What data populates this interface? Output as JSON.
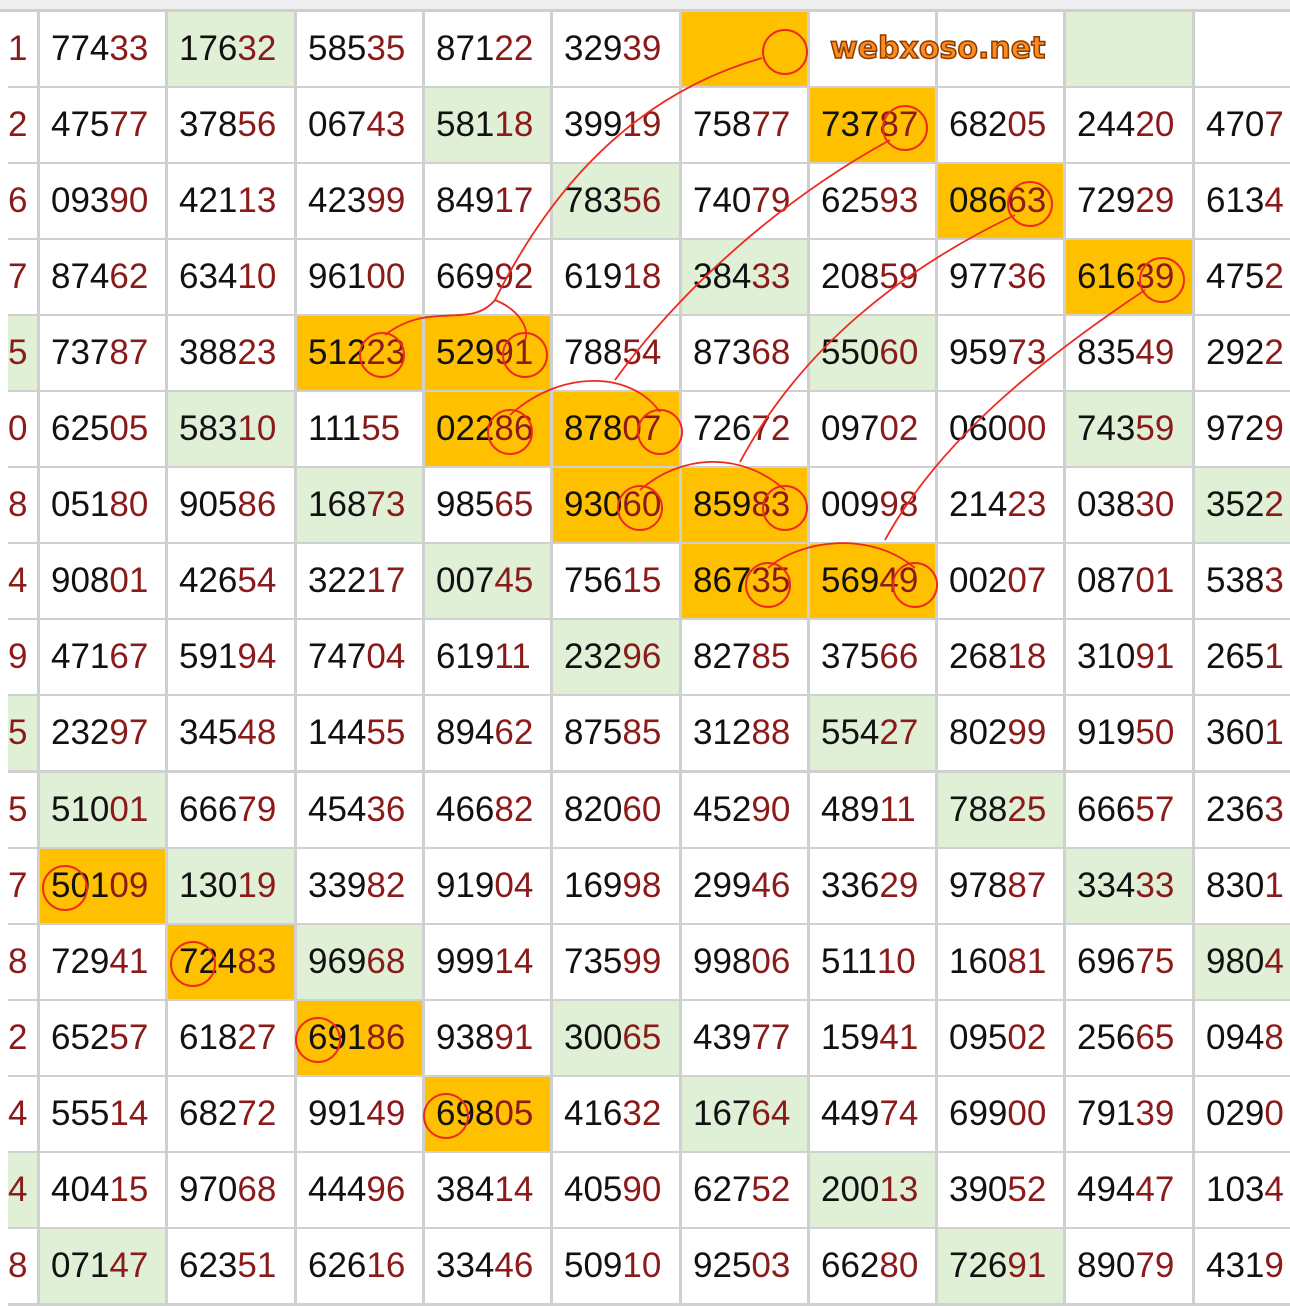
{
  "watermark": "webxoso.net",
  "colors": {
    "green": "#dff0d6",
    "orange": "#ffc000",
    "tail_red": "#8b1a1a"
  },
  "rows": [
    {
      "idx": "1",
      "idx_h": null,
      "cells": [
        {
          "v": "77433",
          "h": null
        },
        {
          "v": "17632",
          "h": "green"
        },
        {
          "v": "58535",
          "h": null
        },
        {
          "v": "87122",
          "h": null
        },
        {
          "v": "32939",
          "h": null
        },
        {
          "v": "",
          "h": "orange"
        },
        {
          "v": "",
          "h": null
        },
        {
          "v": "",
          "h": null
        },
        {
          "v": "",
          "h": "green"
        },
        {
          "v": "",
          "h": null
        }
      ]
    },
    {
      "idx": "2",
      "idx_h": null,
      "cells": [
        {
          "v": "47577",
          "h": null
        },
        {
          "v": "37856",
          "h": null
        },
        {
          "v": "06743",
          "h": null
        },
        {
          "v": "58118",
          "h": "green"
        },
        {
          "v": "39919",
          "h": null
        },
        {
          "v": "75877",
          "h": null
        },
        {
          "v": "73787",
          "h": "orange"
        },
        {
          "v": "68205",
          "h": null
        },
        {
          "v": "24420",
          "h": null
        },
        {
          "v": "4707",
          "h": null
        }
      ]
    },
    {
      "idx": "6",
      "idx_h": null,
      "cells": [
        {
          "v": "09390",
          "h": null
        },
        {
          "v": "42113",
          "h": null
        },
        {
          "v": "42399",
          "h": null
        },
        {
          "v": "84917",
          "h": null
        },
        {
          "v": "78356",
          "h": "green"
        },
        {
          "v": "74079",
          "h": null
        },
        {
          "v": "62593",
          "h": null
        },
        {
          "v": "08663",
          "h": "orange"
        },
        {
          "v": "72929",
          "h": null
        },
        {
          "v": "6134",
          "h": null
        }
      ]
    },
    {
      "idx": "7",
      "idx_h": null,
      "cells": [
        {
          "v": "87462",
          "h": null
        },
        {
          "v": "63410",
          "h": null
        },
        {
          "v": "96100",
          "h": null
        },
        {
          "v": "66992",
          "h": null
        },
        {
          "v": "61918",
          "h": null
        },
        {
          "v": "38433",
          "h": "green"
        },
        {
          "v": "20859",
          "h": null
        },
        {
          "v": "97736",
          "h": null
        },
        {
          "v": "61639",
          "h": "orange"
        },
        {
          "v": "4752",
          "h": null
        }
      ]
    },
    {
      "idx": "5",
      "idx_h": "green",
      "cells": [
        {
          "v": "73787",
          "h": null
        },
        {
          "v": "38823",
          "h": null
        },
        {
          "v": "51223",
          "h": "orange"
        },
        {
          "v": "52991",
          "h": "orange"
        },
        {
          "v": "78854",
          "h": null
        },
        {
          "v": "87368",
          "h": null
        },
        {
          "v": "55060",
          "h": "green"
        },
        {
          "v": "95973",
          "h": null
        },
        {
          "v": "83549",
          "h": null
        },
        {
          "v": "2922",
          "h": null
        }
      ]
    },
    {
      "idx": "0",
      "idx_h": null,
      "cells": [
        {
          "v": "62505",
          "h": null
        },
        {
          "v": "58310",
          "h": "green"
        },
        {
          "v": "11155",
          "h": null
        },
        {
          "v": "02286",
          "h": "orange"
        },
        {
          "v": "87807",
          "h": "orange"
        },
        {
          "v": "72672",
          "h": null
        },
        {
          "v": "09702",
          "h": null
        },
        {
          "v": "06000",
          "h": null
        },
        {
          "v": "74359",
          "h": "green"
        },
        {
          "v": "9729",
          "h": null
        }
      ]
    },
    {
      "idx": "8",
      "idx_h": null,
      "cells": [
        {
          "v": "05180",
          "h": null
        },
        {
          "v": "90586",
          "h": null
        },
        {
          "v": "16873",
          "h": "green"
        },
        {
          "v": "98565",
          "h": null
        },
        {
          "v": "93060",
          "h": "orange"
        },
        {
          "v": "85983",
          "h": "orange"
        },
        {
          "v": "00998",
          "h": null
        },
        {
          "v": "21423",
          "h": null
        },
        {
          "v": "03830",
          "h": null
        },
        {
          "v": "3522",
          "h": "green"
        }
      ]
    },
    {
      "idx": "4",
      "idx_h": null,
      "cells": [
        {
          "v": "90801",
          "h": null
        },
        {
          "v": "42654",
          "h": null
        },
        {
          "v": "32217",
          "h": null
        },
        {
          "v": "00745",
          "h": "green"
        },
        {
          "v": "75615",
          "h": null
        },
        {
          "v": "86735",
          "h": "orange"
        },
        {
          "v": "56949",
          "h": "orange"
        },
        {
          "v": "00207",
          "h": null
        },
        {
          "v": "08701",
          "h": null
        },
        {
          "v": "5383",
          "h": null
        }
      ]
    },
    {
      "idx": "9",
      "idx_h": null,
      "cells": [
        {
          "v": "47167",
          "h": null
        },
        {
          "v": "59194",
          "h": null
        },
        {
          "v": "74704",
          "h": null
        },
        {
          "v": "61911",
          "h": null
        },
        {
          "v": "23296",
          "h": "green"
        },
        {
          "v": "82785",
          "h": null
        },
        {
          "v": "37566",
          "h": null
        },
        {
          "v": "26818",
          "h": null
        },
        {
          "v": "31091",
          "h": null
        },
        {
          "v": "2651",
          "h": null
        }
      ]
    },
    {
      "idx": "5",
      "idx_h": "green",
      "cells": [
        {
          "v": "23297",
          "h": null
        },
        {
          "v": "34548",
          "h": null
        },
        {
          "v": "14455",
          "h": null
        },
        {
          "v": "89462",
          "h": null
        },
        {
          "v": "87585",
          "h": null
        },
        {
          "v": "31288",
          "h": null
        },
        {
          "v": "55427",
          "h": "green"
        },
        {
          "v": "80299",
          "h": null
        },
        {
          "v": "91950",
          "h": null
        },
        {
          "v": "3601",
          "h": null
        }
      ]
    },
    {
      "idx": "5",
      "idx_h": null,
      "cells": [
        {
          "v": "51001",
          "h": "green"
        },
        {
          "v": "66679",
          "h": null
        },
        {
          "v": "45436",
          "h": null
        },
        {
          "v": "46682",
          "h": null
        },
        {
          "v": "82060",
          "h": null
        },
        {
          "v": "45290",
          "h": null
        },
        {
          "v": "48911",
          "h": null
        },
        {
          "v": "78825",
          "h": "green"
        },
        {
          "v": "66657",
          "h": null
        },
        {
          "v": "2363",
          "h": null
        }
      ]
    },
    {
      "idx": "7",
      "idx_h": null,
      "cells": [
        {
          "v": "50109",
          "h": "orange"
        },
        {
          "v": "13019",
          "h": "green"
        },
        {
          "v": "33982",
          "h": null
        },
        {
          "v": "91904",
          "h": null
        },
        {
          "v": "16998",
          "h": null
        },
        {
          "v": "29946",
          "h": null
        },
        {
          "v": "33629",
          "h": null
        },
        {
          "v": "97887",
          "h": null
        },
        {
          "v": "33433",
          "h": "green"
        },
        {
          "v": "8301",
          "h": null
        }
      ]
    },
    {
      "idx": "8",
      "idx_h": null,
      "cells": [
        {
          "v": "72941",
          "h": null
        },
        {
          "v": "72483",
          "h": "orange"
        },
        {
          "v": "96968",
          "h": "green"
        },
        {
          "v": "99914",
          "h": null
        },
        {
          "v": "73599",
          "h": null
        },
        {
          "v": "99806",
          "h": null
        },
        {
          "v": "51110",
          "h": null
        },
        {
          "v": "16081",
          "h": null
        },
        {
          "v": "69675",
          "h": null
        },
        {
          "v": "9804",
          "h": "green"
        }
      ]
    },
    {
      "idx": "2",
      "idx_h": null,
      "cells": [
        {
          "v": "65257",
          "h": null
        },
        {
          "v": "61827",
          "h": null
        },
        {
          "v": "69186",
          "h": "orange"
        },
        {
          "v": "93891",
          "h": null
        },
        {
          "v": "30065",
          "h": "green"
        },
        {
          "v": "43977",
          "h": null
        },
        {
          "v": "15941",
          "h": null
        },
        {
          "v": "09502",
          "h": null
        },
        {
          "v": "25665",
          "h": null
        },
        {
          "v": "0948",
          "h": null
        }
      ]
    },
    {
      "idx": "4",
      "idx_h": null,
      "cells": [
        {
          "v": "55514",
          "h": null
        },
        {
          "v": "68272",
          "h": null
        },
        {
          "v": "99149",
          "h": null
        },
        {
          "v": "69805",
          "h": "orange"
        },
        {
          "v": "41632",
          "h": null
        },
        {
          "v": "16764",
          "h": "green"
        },
        {
          "v": "44974",
          "h": null
        },
        {
          "v": "69900",
          "h": null
        },
        {
          "v": "79139",
          "h": null
        },
        {
          "v": "0290",
          "h": null
        }
      ]
    },
    {
      "idx": "4",
      "idx_h": "green",
      "cells": [
        {
          "v": "40415",
          "h": null
        },
        {
          "v": "97068",
          "h": null
        },
        {
          "v": "44496",
          "h": null
        },
        {
          "v": "38414",
          "h": null
        },
        {
          "v": "40590",
          "h": null
        },
        {
          "v": "62752",
          "h": null
        },
        {
          "v": "20013",
          "h": "green"
        },
        {
          "v": "39052",
          "h": null
        },
        {
          "v": "49447",
          "h": null
        },
        {
          "v": "1034",
          "h": null
        }
      ]
    },
    {
      "idx": "8",
      "idx_h": null,
      "cells": [
        {
          "v": "07147",
          "h": "green"
        },
        {
          "v": "62351",
          "h": null
        },
        {
          "v": "62616",
          "h": null
        },
        {
          "v": "33446",
          "h": null
        },
        {
          "v": "50910",
          "h": null
        },
        {
          "v": "92503",
          "h": null
        },
        {
          "v": "66280",
          "h": null
        },
        {
          "v": "72691",
          "h": "green"
        },
        {
          "v": "89079",
          "h": null
        },
        {
          "v": "4319",
          "h": null
        }
      ]
    }
  ]
}
